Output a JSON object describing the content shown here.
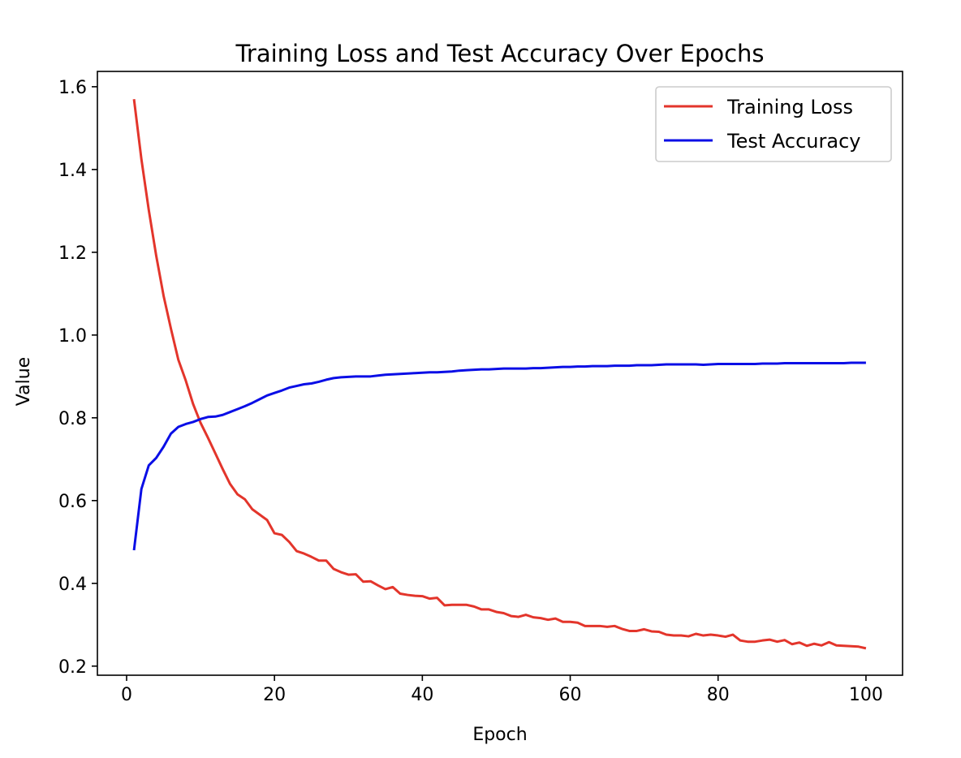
{
  "chart_data": {
    "type": "line",
    "title": "Training Loss and Test Accuracy Over Epochs",
    "xlabel": "Epoch",
    "ylabel": "Value",
    "xlim": [
      -3.95,
      104.95
    ],
    "ylim": [
      0.178,
      1.637
    ],
    "xticks": [
      0,
      20,
      40,
      60,
      80,
      100
    ],
    "yticks": [
      0.2,
      0.4,
      0.6,
      0.8,
      1.0,
      1.2,
      1.4,
      1.6
    ],
    "grid": false,
    "legend": "top-right",
    "x_start": 1,
    "series": [
      {
        "name": "Training Loss",
        "color": "#e3352b",
        "values": [
          1.57,
          1.425,
          1.302,
          1.192,
          1.095,
          1.015,
          0.94,
          0.89,
          0.833,
          0.788,
          0.752,
          0.714,
          0.676,
          0.64,
          0.615,
          0.603,
          0.579,
          0.566,
          0.553,
          0.521,
          0.517,
          0.5,
          0.478,
          0.472,
          0.464,
          0.455,
          0.455,
          0.435,
          0.427,
          0.421,
          0.422,
          0.404,
          0.405,
          0.395,
          0.386,
          0.391,
          0.375,
          0.372,
          0.37,
          0.369,
          0.363,
          0.365,
          0.347,
          0.348,
          0.348,
          0.348,
          0.344,
          0.337,
          0.337,
          0.331,
          0.328,
          0.321,
          0.319,
          0.324,
          0.318,
          0.316,
          0.312,
          0.315,
          0.307,
          0.307,
          0.305,
          0.297,
          0.297,
          0.297,
          0.295,
          0.297,
          0.29,
          0.285,
          0.285,
          0.289,
          0.284,
          0.283,
          0.276,
          0.274,
          0.274,
          0.272,
          0.278,
          0.274,
          0.276,
          0.274,
          0.271,
          0.276,
          0.262,
          0.259,
          0.259,
          0.262,
          0.264,
          0.259,
          0.263,
          0.253,
          0.257,
          0.249,
          0.254,
          0.25,
          0.258,
          0.25,
          0.249,
          0.248,
          0.247,
          0.243
        ]
      },
      {
        "name": "Test Accuracy",
        "color": "#0a0ee6",
        "values": [
          0.48,
          0.628,
          0.685,
          0.703,
          0.73,
          0.762,
          0.778,
          0.785,
          0.79,
          0.797,
          0.802,
          0.803,
          0.807,
          0.814,
          0.821,
          0.828,
          0.836,
          0.845,
          0.854,
          0.86,
          0.866,
          0.873,
          0.877,
          0.881,
          0.883,
          0.887,
          0.892,
          0.896,
          0.898,
          0.899,
          0.9,
          0.9,
          0.9,
          0.902,
          0.904,
          0.905,
          0.906,
          0.907,
          0.908,
          0.909,
          0.91,
          0.91,
          0.911,
          0.912,
          0.914,
          0.915,
          0.916,
          0.917,
          0.917,
          0.918,
          0.919,
          0.919,
          0.919,
          0.919,
          0.92,
          0.92,
          0.921,
          0.922,
          0.923,
          0.923,
          0.924,
          0.924,
          0.925,
          0.925,
          0.925,
          0.926,
          0.926,
          0.926,
          0.927,
          0.927,
          0.927,
          0.928,
          0.929,
          0.929,
          0.929,
          0.929,
          0.929,
          0.928,
          0.929,
          0.93,
          0.93,
          0.93,
          0.93,
          0.93,
          0.93,
          0.931,
          0.931,
          0.931,
          0.932,
          0.932,
          0.932,
          0.932,
          0.932,
          0.932,
          0.932,
          0.932,
          0.932,
          0.933,
          0.933,
          0.933
        ]
      }
    ]
  }
}
